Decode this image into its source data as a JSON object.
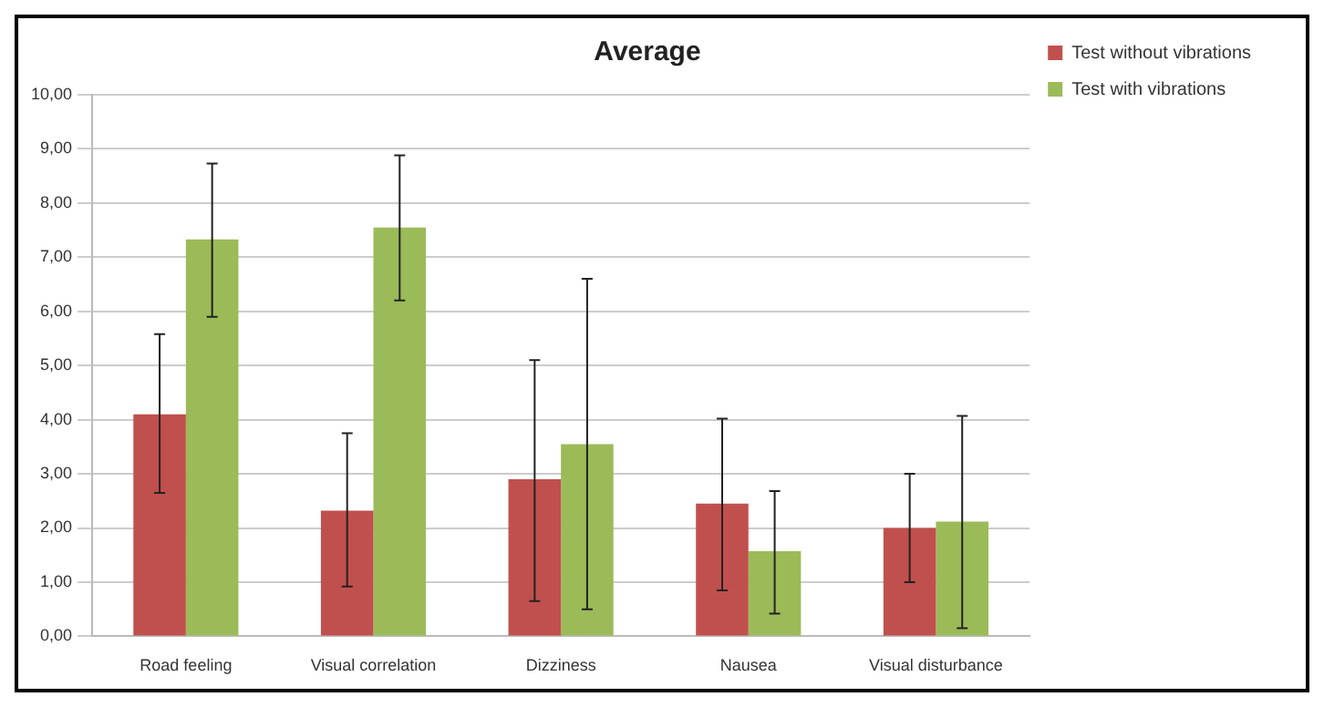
{
  "chart_data": {
    "type": "bar",
    "title": "Average",
    "categories": [
      "Road feeling",
      "Visual correlation",
      "Dizziness",
      "Nausea",
      "Visual disturbance"
    ],
    "series": [
      {
        "name": "Test without vibrations",
        "color": "#c0504d",
        "values": [
          4.1,
          2.32,
          2.9,
          2.45,
          2.0
        ],
        "errors": [
          [
            2.65,
            5.58
          ],
          [
            0.92,
            3.75
          ],
          [
            0.65,
            5.1
          ],
          [
            0.85,
            4.02
          ],
          [
            1.0,
            3.0
          ]
        ]
      },
      {
        "name": "Test with vibrations",
        "color": "#9bbb59",
        "values": [
          7.33,
          7.55,
          3.55,
          1.57,
          2.12
        ],
        "errors": [
          [
            5.9,
            8.73
          ],
          [
            6.2,
            8.88
          ],
          [
            0.5,
            6.6
          ],
          [
            0.42,
            2.68
          ],
          [
            0.15,
            4.07
          ]
        ]
      }
    ],
    "ylim": [
      0,
      10
    ],
    "yticks": [
      {
        "value": 0,
        "label": "0,00"
      },
      {
        "value": 1,
        "label": "1,00"
      },
      {
        "value": 2,
        "label": "2,00"
      },
      {
        "value": 3,
        "label": "3,00"
      },
      {
        "value": 4,
        "label": "4,00"
      },
      {
        "value": 5,
        "label": "5,00"
      },
      {
        "value": 6,
        "label": "6,00"
      },
      {
        "value": 7,
        "label": "7,00"
      },
      {
        "value": 8,
        "label": "8,00"
      },
      {
        "value": 9,
        "label": "9,00"
      },
      {
        "value": 10,
        "label": "10,00"
      }
    ],
    "grid": "y",
    "legend": "top right"
  }
}
